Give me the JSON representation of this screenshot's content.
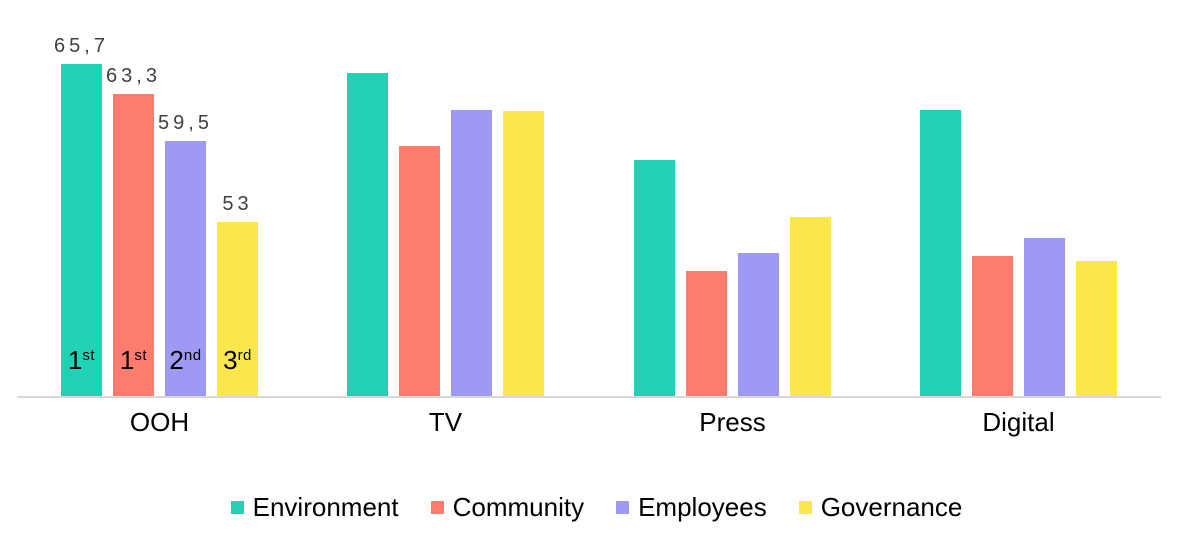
{
  "chart_data": {
    "type": "bar",
    "title": "",
    "xlabel": "",
    "ylabel": "",
    "categories": [
      "OOH",
      "TV",
      "Press",
      "Digital"
    ],
    "series": [
      {
        "name": "Environment",
        "color": "#21d1b4",
        "values": [
          65.7,
          65.0,
          58.0,
          62.0
        ]
      },
      {
        "name": "Community",
        "color": "#fd7c6d",
        "values": [
          63.3,
          59.1,
          49.1,
          50.3
        ]
      },
      {
        "name": "Employees",
        "color": "#9e99f3",
        "values": [
          59.5,
          62.0,
          50.5,
          51.7
        ]
      },
      {
        "name": "Governance",
        "color": "#fbe74b",
        "values": [
          53.0,
          61.9,
          53.4,
          49.9
        ]
      }
    ],
    "data_labels": {
      "category": "OOH",
      "texts": [
        "65,7",
        "63,3",
        "59,5",
        "53"
      ]
    },
    "rank_labels": {
      "category": "OOH",
      "items": [
        {
          "value": "1",
          "ordinal": "st"
        },
        {
          "value": "1",
          "ordinal": "st"
        },
        {
          "value": "2",
          "ordinal": "nd"
        },
        {
          "value": "3",
          "ordinal": "rd"
        }
      ]
    },
    "ylim": [
      39,
      70
    ],
    "grid": false,
    "legend_position": "bottom",
    "axis_line_color": "#d9d9d9",
    "value_label_color": "#404040",
    "text_color": "#000000"
  }
}
